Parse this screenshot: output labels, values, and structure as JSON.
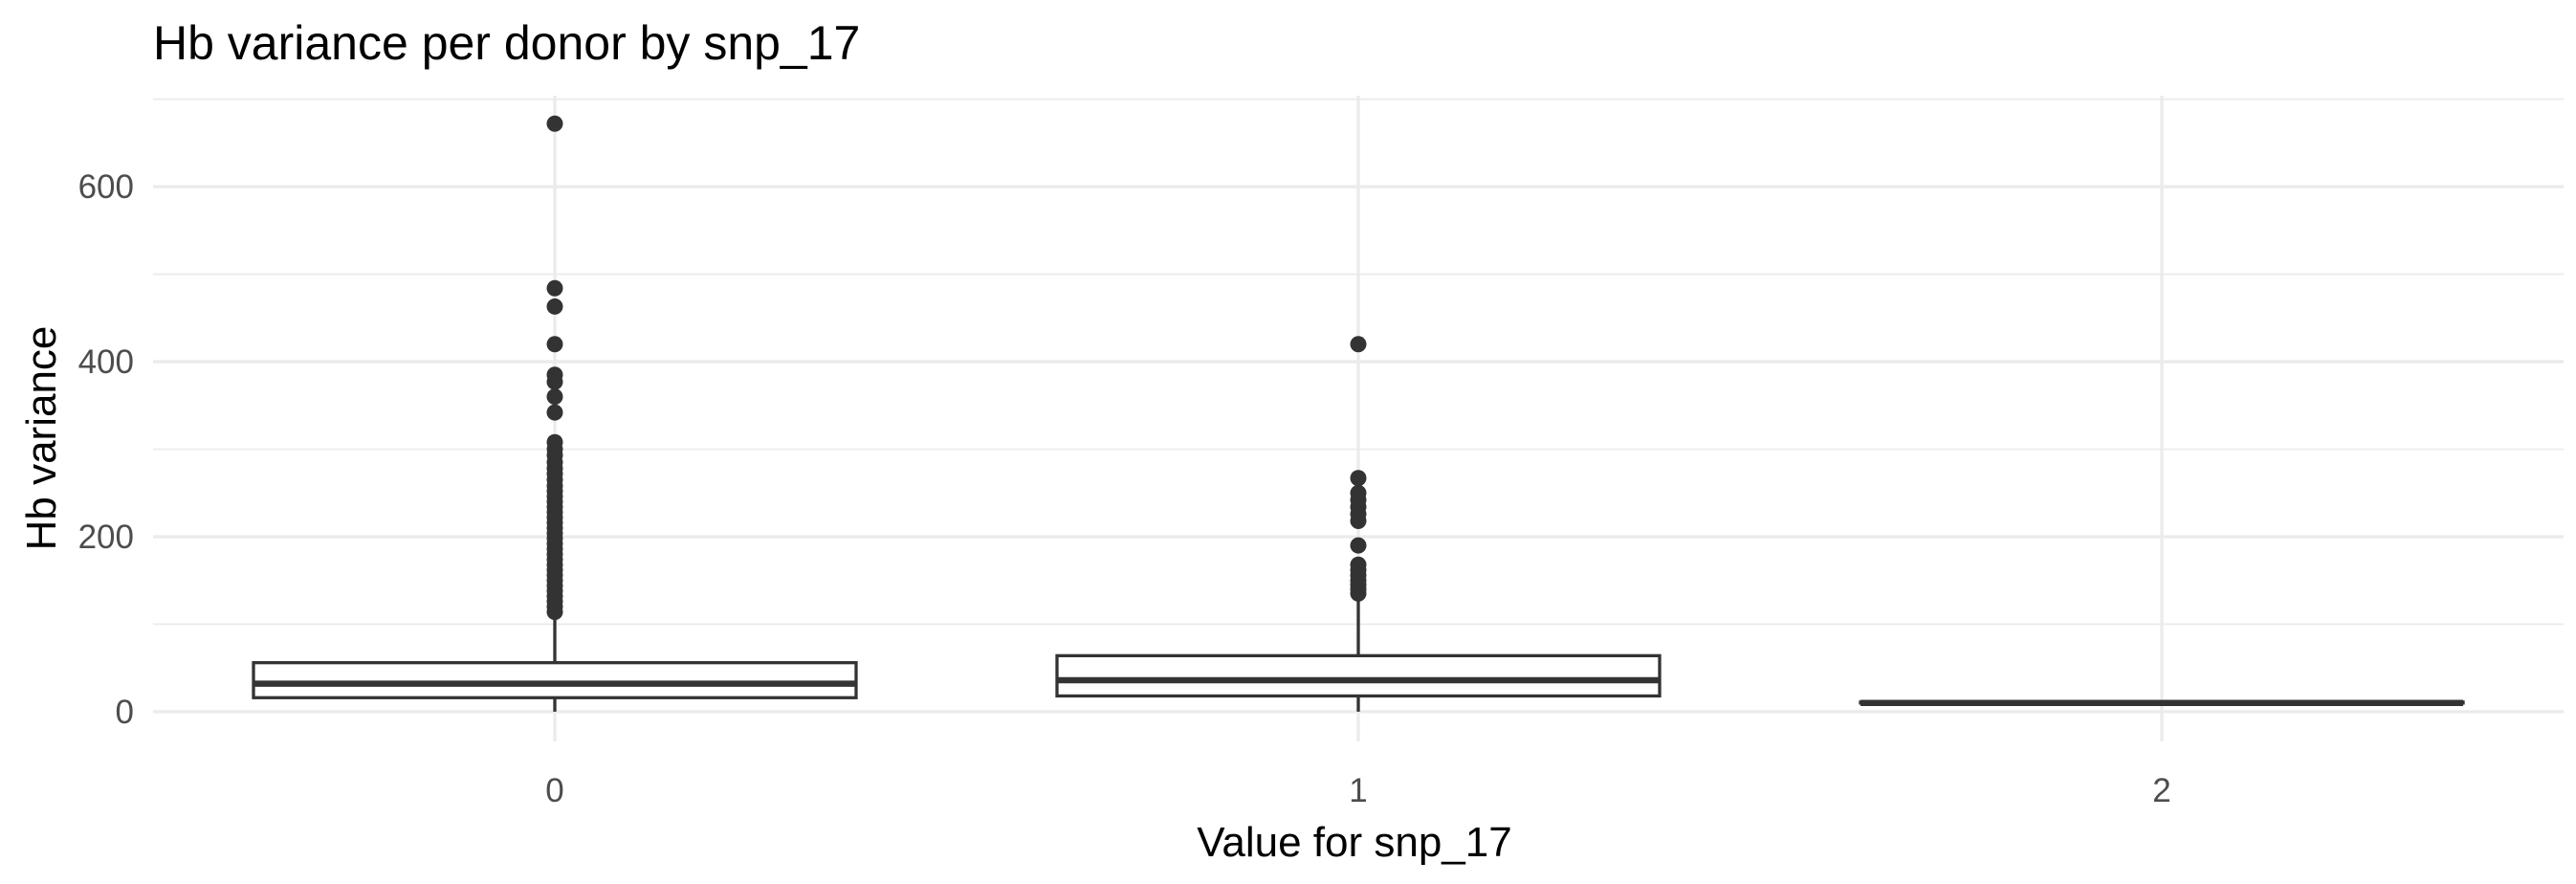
{
  "chart_data": {
    "type": "box",
    "title": "Hb variance per donor by snp_17",
    "xlabel": "Value for snp_17",
    "ylabel": "Hb variance",
    "categories": [
      "0",
      "1",
      "2"
    ],
    "y_ticks": [
      0,
      200,
      400,
      600
    ],
    "ylim": [
      -34,
      704
    ],
    "grid": true,
    "boxes": [
      {
        "category": "0",
        "min": 0,
        "q1": 16,
        "median": 32,
        "q3": 56,
        "max": 111,
        "outliers": [
          672,
          484,
          463,
          420,
          385,
          377,
          360,
          342,
          308,
          300,
          293,
          285,
          278,
          272,
          265,
          258,
          252,
          246,
          240,
          234,
          228,
          222,
          216,
          210,
          204,
          198,
          192,
          186,
          180,
          174,
          168,
          162,
          156,
          150,
          144,
          138,
          132,
          126,
          120,
          114
        ]
      },
      {
        "category": "1",
        "min": 0,
        "q1": 18,
        "median": 36,
        "q3": 64,
        "max": 130,
        "outliers": [
          420,
          267,
          250,
          242,
          234,
          226,
          218,
          190,
          168,
          162,
          156,
          150,
          145,
          140,
          135
        ]
      },
      {
        "category": "2",
        "min": 10,
        "q1": 10,
        "median": 10,
        "q3": 11,
        "max": 11,
        "outliers": []
      }
    ]
  }
}
